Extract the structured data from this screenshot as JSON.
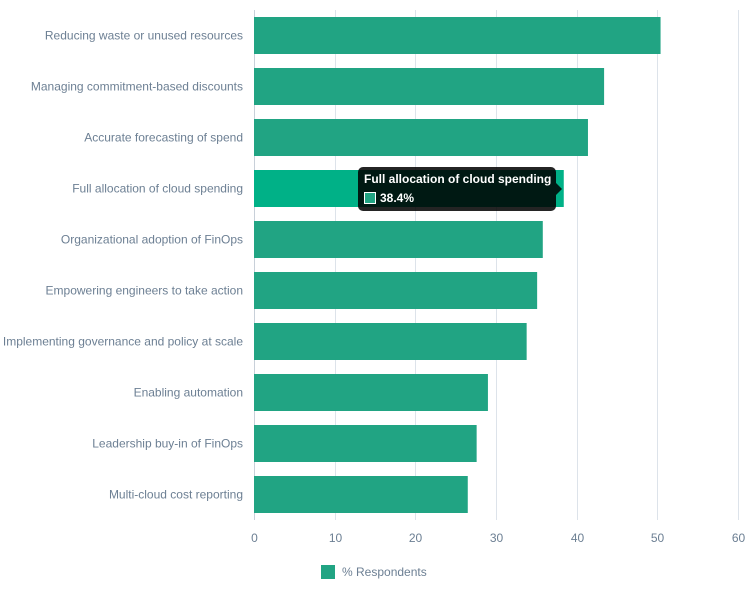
{
  "chart_data": {
    "type": "bar",
    "orientation": "horizontal",
    "categories": [
      "Reducing waste or unused resources",
      "Managing commitment-based discounts",
      "Accurate forecasting of spend",
      "Full allocation of cloud spending",
      "Organizational adoption of FinOps",
      "Empowering engineers to take action",
      "Implementing governance and policy at scale",
      "Enabling automation",
      "Leadership buy-in of FinOps",
      "Multi-cloud cost reporting"
    ],
    "series": [
      {
        "name": "% Respondents",
        "values": [
          50.4,
          43.4,
          41.4,
          38.4,
          35.8,
          35.1,
          33.8,
          29.0,
          27.6,
          26.5
        ]
      }
    ],
    "xlim": [
      0,
      60
    ],
    "xticks": [
      "0",
      "10",
      "20",
      "30",
      "40",
      "50",
      "60"
    ],
    "grid": "vertical",
    "legend_position": "bottom",
    "highlighted_index": 3
  },
  "tooltip": {
    "title": "Full allocation of cloud spending",
    "value": "38.4%"
  },
  "legend": {
    "label": "% Respondents"
  },
  "colors": {
    "bar": "#21a483",
    "bar_highlight": "#00b187",
    "grid": "#dde3ea",
    "text": "#6c7f93"
  }
}
